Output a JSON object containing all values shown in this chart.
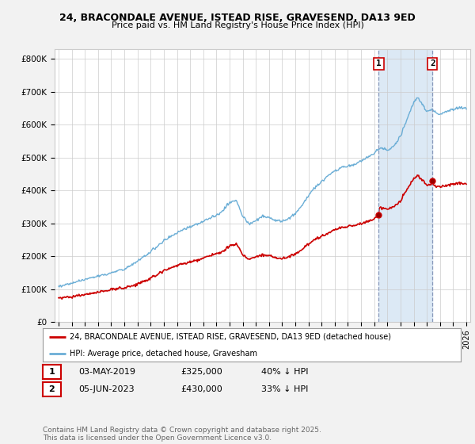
{
  "title": "24, BRACONDALE AVENUE, ISTEAD RISE, GRAVESEND, DA13 9ED",
  "subtitle": "Price paid vs. HM Land Registry's House Price Index (HPI)",
  "ylabel_ticks": [
    "£0",
    "£100K",
    "£200K",
    "£300K",
    "£400K",
    "£500K",
    "£600K",
    "£700K",
    "£800K"
  ],
  "ytick_values": [
    0,
    100000,
    200000,
    300000,
    400000,
    500000,
    600000,
    700000,
    800000
  ],
  "ylim": [
    0,
    830000
  ],
  "xlim_start": 1994.7,
  "xlim_end": 2026.3,
  "marker1_x": 2019.34,
  "marker1_y": 325000,
  "marker2_x": 2023.43,
  "marker2_y": 430000,
  "legend_line1": "24, BRACONDALE AVENUE, ISTEAD RISE, GRAVESEND, DA13 9ED (detached house)",
  "legend_line2": "HPI: Average price, detached house, Gravesham",
  "table_row1": [
    "1",
    "03-MAY-2019",
    "£325,000",
    "40% ↓ HPI"
  ],
  "table_row2": [
    "2",
    "05-JUN-2023",
    "£430,000",
    "33% ↓ HPI"
  ],
  "footnote": "Contains HM Land Registry data © Crown copyright and database right 2025.\nThis data is licensed under the Open Government Licence v3.0.",
  "hpi_color": "#6BAED6",
  "price_color": "#CC0000",
  "vline_color": "#AAAACC",
  "shade_color": "#DCE9F5",
  "bg_color": "#F2F2F2",
  "plot_bg": "#FFFFFF",
  "grid_color": "#CCCCCC"
}
